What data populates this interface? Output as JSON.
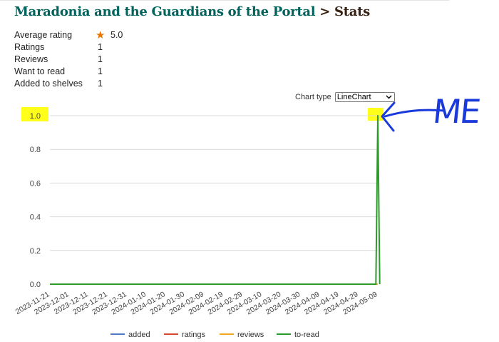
{
  "header": {
    "book_title": "Maradonia and the Guardians of the Portal",
    "separator": ">",
    "section": "Stats"
  },
  "stats": [
    {
      "label": "Average rating",
      "value": "5.0",
      "icon": "star-icon"
    },
    {
      "label": "Ratings",
      "value": "1"
    },
    {
      "label": "Reviews",
      "value": "1"
    },
    {
      "label": "Want to read",
      "value": "1"
    },
    {
      "label": "Added to shelves",
      "value": "1"
    }
  ],
  "chart_controls": {
    "label": "Chart type",
    "selected": "LineChart"
  },
  "annotation": {
    "handwritten_text": "ME",
    "color": "#1a3adb",
    "highlight_color": "#ffff00"
  },
  "chart_data": {
    "type": "line",
    "x": [
      "2023-11-21",
      "2023-12-01",
      "2023-12-11",
      "2023-12-21",
      "2023-12-31",
      "2024-01-10",
      "2024-01-20",
      "2024-01-30",
      "2024-02-09",
      "2024-02-19",
      "2024-02-29",
      "2024-03-10",
      "2024-03-20",
      "2024-03-30",
      "2024-04-09",
      "2024-04-19",
      "2024-04-29",
      "2024-05-09"
    ],
    "ylim": [
      0,
      1
    ],
    "yticks": [
      "0.0",
      "0.2",
      "0.4",
      "0.6",
      "0.8",
      "1.0"
    ],
    "grid": true,
    "legend_position": "bottom",
    "series": [
      {
        "name": "added",
        "color": "#4e79c4",
        "points": [
          [
            "2023-11-21",
            0
          ],
          [
            "2024-05-09",
            0
          ]
        ]
      },
      {
        "name": "ratings",
        "color": "#d84533",
        "points": [
          [
            "2023-11-21",
            0
          ],
          [
            "2024-05-09",
            0
          ]
        ]
      },
      {
        "name": "reviews",
        "color": "#f0a623",
        "points": [
          [
            "2023-11-21",
            0
          ],
          [
            "2024-05-09",
            0
          ]
        ]
      },
      {
        "name": "to-read",
        "color": "#2f9a2c",
        "points": [
          [
            "2023-11-21",
            0
          ],
          [
            "2024-05-08",
            0
          ],
          [
            "2024-05-09",
            1
          ],
          [
            "2024-05-10",
            0
          ]
        ]
      }
    ]
  }
}
